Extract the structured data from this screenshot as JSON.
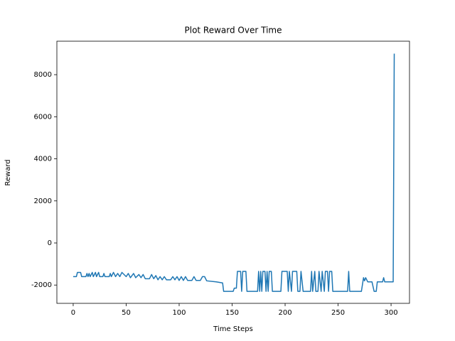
{
  "chart_data": {
    "type": "line",
    "title": "Plot Reward Over Time",
    "xlabel": "Time Steps",
    "ylabel": "Reward",
    "color": "#1f77b4",
    "x": [
      0,
      3,
      4,
      7,
      8,
      12,
      13,
      14,
      15,
      16,
      18,
      19,
      21,
      22,
      24,
      25,
      28,
      29,
      30,
      34,
      35,
      36,
      38,
      40,
      42,
      44,
      46,
      50,
      52,
      54,
      57,
      59,
      62,
      64,
      66,
      68,
      72,
      74,
      76,
      78,
      80,
      82,
      84,
      86,
      88,
      92,
      94,
      96,
      98,
      100,
      102,
      104,
      106,
      108,
      112,
      114,
      116,
      120,
      122,
      124,
      126,
      135,
      141,
      142,
      151,
      152,
      154,
      155,
      158,
      159,
      160,
      163,
      164,
      174,
      175,
      176,
      177,
      178,
      179,
      181,
      182,
      183,
      184,
      185,
      187,
      188,
      196,
      197,
      202,
      203,
      204,
      206,
      207,
      211,
      212,
      214,
      215,
      217,
      224,
      225,
      226,
      228,
      229,
      231,
      232,
      234,
      235,
      237,
      238,
      240,
      241,
      242,
      244,
      245,
      259,
      260,
      261,
      272,
      274,
      275,
      276,
      278,
      282,
      284,
      286,
      287,
      292,
      293,
      294,
      302,
      303
    ],
    "values": [
      -1600,
      -1600,
      -1400,
      -1400,
      -1600,
      -1600,
      -1450,
      -1600,
      -1450,
      -1600,
      -1400,
      -1600,
      -1400,
      -1600,
      -1400,
      -1600,
      -1600,
      -1450,
      -1600,
      -1600,
      -1450,
      -1600,
      -1400,
      -1600,
      -1450,
      -1600,
      -1400,
      -1600,
      -1450,
      -1650,
      -1450,
      -1650,
      -1500,
      -1650,
      -1500,
      -1700,
      -1700,
      -1500,
      -1700,
      -1550,
      -1750,
      -1600,
      -1750,
      -1600,
      -1750,
      -1750,
      -1600,
      -1750,
      -1600,
      -1780,
      -1600,
      -1780,
      -1600,
      -1780,
      -1780,
      -1600,
      -1780,
      -1780,
      -1600,
      -1600,
      -1800,
      -1850,
      -1900,
      -2300,
      -2300,
      -2150,
      -2150,
      -1350,
      -1350,
      -2300,
      -1350,
      -1350,
      -2300,
      -2300,
      -1350,
      -2300,
      -1350,
      -2300,
      -1350,
      -1350,
      -2300,
      -1350,
      -2300,
      -1350,
      -1350,
      -2300,
      -2300,
      -1350,
      -1350,
      -2300,
      -1350,
      -2300,
      -1350,
      -1350,
      -2300,
      -2300,
      -1350,
      -2300,
      -2300,
      -1350,
      -2300,
      -1350,
      -2300,
      -2300,
      -1350,
      -2300,
      -1350,
      -2300,
      -1350,
      -1350,
      -2300,
      -1350,
      -1350,
      -2300,
      -2300,
      -1350,
      -2300,
      -2300,
      -1650,
      -1800,
      -1650,
      -1850,
      -1850,
      -2300,
      -2300,
      -1850,
      -1850,
      -1650,
      -1850,
      -1850,
      9000
    ],
    "xlim": [
      -15.4,
      317.4
    ],
    "xticks": [
      0,
      50,
      100,
      150,
      200,
      250,
      300
    ],
    "ylim": [
      -2870,
      9590
    ],
    "yticks": [
      -2000,
      0,
      2000,
      4000,
      6000,
      8000
    ]
  }
}
